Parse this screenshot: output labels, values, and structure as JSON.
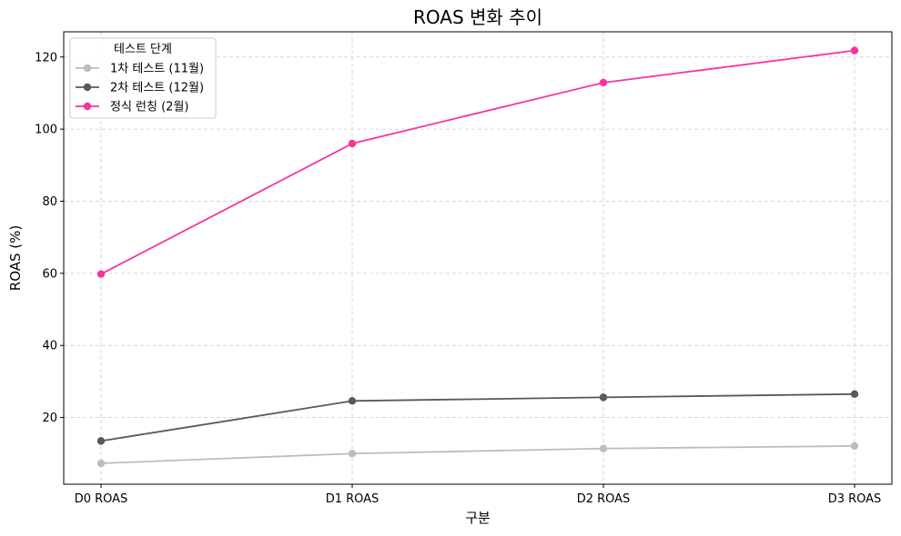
{
  "chart_data": {
    "type": "line",
    "title": "ROAS 변화 추이",
    "xlabel": "구분",
    "ylabel": "ROAS (%)",
    "categories": [
      "D0 ROAS",
      "D1 ROAS",
      "D2 ROAS",
      "D3 ROAS"
    ],
    "ylim": [
      1.5,
      127
    ],
    "yticks": [
      20,
      40,
      60,
      80,
      100,
      120
    ],
    "ytick_labels": [
      "20",
      "40",
      "60",
      "80",
      "100",
      "120"
    ],
    "grid": true,
    "legend": {
      "title": "테스트 단계",
      "placement": "top-left"
    },
    "series": [
      {
        "name": "1차 테스트 (11월)",
        "values": [
          7.3,
          10.0,
          11.4,
          12.1
        ],
        "color": "#bdbdbd"
      },
      {
        "name": "2차 테스트 (12월)",
        "values": [
          13.5,
          24.6,
          25.6,
          26.5
        ],
        "color": "#595959"
      },
      {
        "name": "정식 런칭 (2월)",
        "values": [
          59.8,
          96.0,
          112.9,
          121.8
        ],
        "color": "#f7339b"
      }
    ]
  }
}
